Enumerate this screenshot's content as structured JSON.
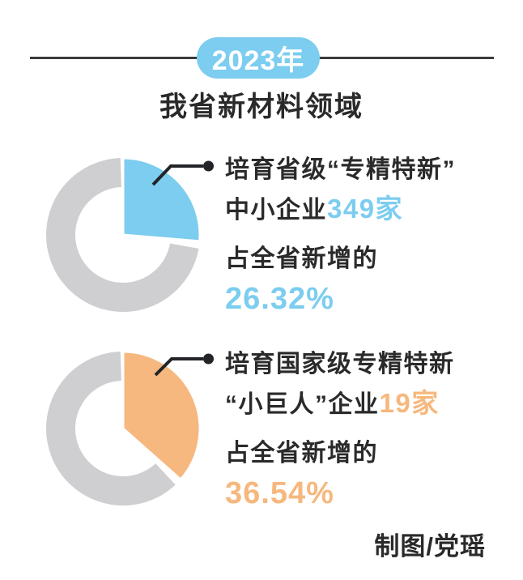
{
  "header": {
    "year_badge": "2023年",
    "title": "我省新材料领域"
  },
  "colors": {
    "blue": "#7CCDEF",
    "orange": "#F6B87E",
    "track_gray": "#CFCFD1",
    "ink": "#2a2a2a",
    "rule_line": "#3b3b3b"
  },
  "credit": "制图/党瑶",
  "chart_data": [
    {
      "type": "pie",
      "label_line1": "培育省级“专精特新”",
      "label_line2_prefix": "中小企业",
      "label_line2_value": "349家",
      "stat_caption": "占全省新增的",
      "stat_value": "26.32%",
      "percent": 26.32,
      "color": "#7CCDEF",
      "track_color": "#CFCFD1"
    },
    {
      "type": "pie",
      "label_line1": "培育国家级专精特新",
      "label_line2_prefix": "“小巨人”企业",
      "label_line2_value": "19家",
      "stat_caption": "占全省新增的",
      "stat_value": "36.54%",
      "percent": 36.54,
      "color": "#F6B87E",
      "track_color": "#CFCFD1"
    }
  ]
}
